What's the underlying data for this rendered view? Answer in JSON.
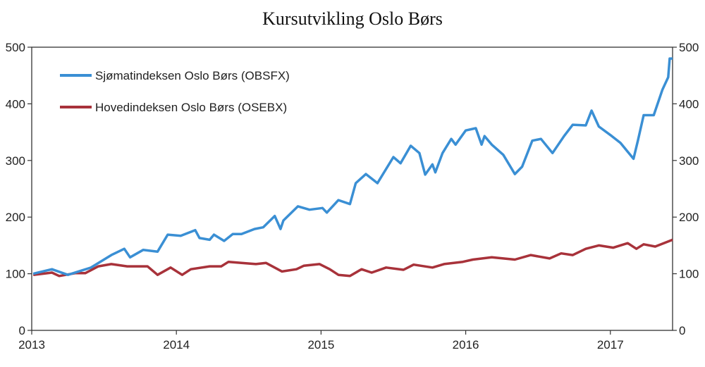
{
  "chart_data": {
    "type": "line",
    "title": "Kursutvikling Oslo Børs",
    "xlabel": "",
    "ylabel": "",
    "xlim": [
      2013,
      2017.43
    ],
    "ylim": [
      0,
      500
    ],
    "x_ticks": [
      "2013",
      "2014",
      "2015",
      "2016",
      "2017"
    ],
    "y_ticks": [
      "0",
      "100",
      "200",
      "300",
      "400",
      "500"
    ],
    "y_axis_both_sides": true,
    "grid": false,
    "legend_position": "top-left",
    "series": [
      {
        "name": "Sjømatindeksen Oslo Børs (OBSFX)",
        "color": "#3a8fd4",
        "x": [
          2013.01,
          2013.14,
          2013.25,
          2013.41,
          2013.55,
          2013.64,
          2013.68,
          2013.77,
          2013.87,
          2013.94,
          2014.03,
          2014.13,
          2014.16,
          2014.23,
          2014.26,
          2014.33,
          2014.39,
          2014.45,
          2014.54,
          2014.6,
          2014.68,
          2014.72,
          2014.74,
          2014.84,
          2014.92,
          2015.01,
          2015.04,
          2015.12,
          2015.2,
          2015.24,
          2015.31,
          2015.39,
          2015.5,
          2015.55,
          2015.62,
          2015.68,
          2015.72,
          2015.77,
          2015.79,
          2015.84,
          2015.9,
          2015.93,
          2016.0,
          2016.07,
          2016.11,
          2016.13,
          2016.18,
          2016.26,
          2016.34,
          2016.39,
          2016.46,
          2016.52,
          2016.6,
          2016.68,
          2016.74,
          2016.83,
          2016.87,
          2016.92,
          2017.01,
          2017.07,
          2017.16,
          2017.19,
          2017.23,
          2017.3,
          2017.36,
          2017.4,
          2017.41,
          2017.43
        ],
        "y": [
          100,
          108,
          98,
          111,
          133,
          144,
          129,
          142,
          139,
          169,
          167,
          177,
          163,
          160,
          169,
          158,
          170,
          170,
          179,
          182,
          202,
          179,
          194,
          219,
          213,
          216,
          208,
          230,
          223,
          260,
          276,
          260,
          306,
          295,
          326,
          313,
          275,
          293,
          279,
          313,
          338,
          328,
          353,
          357,
          328,
          343,
          328,
          310,
          276,
          289,
          335,
          338,
          313,
          343,
          363,
          362,
          388,
          360,
          343,
          331,
          303,
          335,
          380,
          380,
          425,
          447,
          480,
          480
        ]
      },
      {
        "name": "Hovedindeksen Oslo Børs (OSEBX)",
        "color": "#a8323a",
        "x": [
          2013.01,
          2013.14,
          2013.19,
          2013.3,
          2013.37,
          2013.46,
          2013.55,
          2013.66,
          2013.8,
          2013.87,
          2013.96,
          2014.04,
          2014.1,
          2014.23,
          2014.31,
          2014.36,
          2014.45,
          2014.55,
          2014.62,
          2014.73,
          2014.83,
          2014.88,
          2014.99,
          2015.06,
          2015.12,
          2015.2,
          2015.28,
          2015.35,
          2015.45,
          2015.57,
          2015.64,
          2015.77,
          2015.85,
          2015.98,
          2016.05,
          2016.18,
          2016.34,
          2016.45,
          2016.58,
          2016.66,
          2016.74,
          2016.83,
          2016.92,
          2017.02,
          2017.12,
          2017.18,
          2017.23,
          2017.31,
          2017.43
        ],
        "y": [
          98,
          102,
          96,
          101,
          101,
          113,
          117,
          113,
          113,
          98,
          111,
          98,
          108,
          113,
          113,
          121,
          119,
          117,
          119,
          104,
          108,
          114,
          117,
          108,
          98,
          96,
          108,
          102,
          111,
          107,
          116,
          111,
          117,
          121,
          125,
          129,
          125,
          133,
          127,
          136,
          133,
          144,
          150,
          146,
          154,
          144,
          152,
          148,
          160
        ]
      }
    ]
  }
}
